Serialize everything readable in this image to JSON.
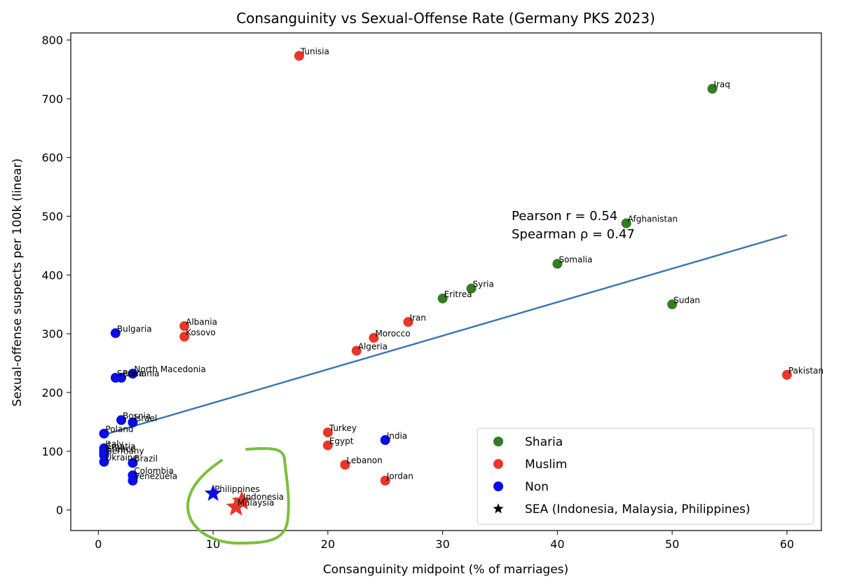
{
  "chart_data": {
    "type": "scatter",
    "title": "Consanguinity vs Sexual-Offense Rate (Germany PKS 2023)",
    "xlabel": "Consanguinity midpoint (% of marriages)",
    "ylabel": "Sexual-offense suspects per 100k (linear)",
    "xlim": [
      -2.4,
      63.0
    ],
    "ylim": [
      -35,
      812
    ],
    "xticks": [
      0,
      10,
      20,
      30,
      40,
      50,
      60
    ],
    "yticks": [
      0,
      100,
      200,
      300,
      400,
      500,
      600,
      700,
      800
    ],
    "colors": {
      "Sharia": "#347c25",
      "Muslim": "#e8372a",
      "Non": "#0a0de6",
      "trend": "#3a74b0",
      "annotation": "#7cbf3c"
    },
    "points": [
      {
        "label": "Tunisia",
        "group": "Muslim",
        "x": 17.5,
        "y": 773
      },
      {
        "label": "Iraq",
        "group": "Sharia",
        "x": 53.5,
        "y": 717
      },
      {
        "label": "Afghanistan",
        "group": "Sharia",
        "x": 46.0,
        "y": 488
      },
      {
        "label": "Somalia",
        "group": "Sharia",
        "x": 40.0,
        "y": 419
      },
      {
        "label": "Syria",
        "group": "Sharia",
        "x": 32.5,
        "y": 377
      },
      {
        "label": "Eritrea",
        "group": "Sharia",
        "x": 30.0,
        "y": 360
      },
      {
        "label": "Sudan",
        "group": "Sharia",
        "x": 50.0,
        "y": 350
      },
      {
        "label": "Iran",
        "group": "Muslim",
        "x": 27.0,
        "y": 320
      },
      {
        "label": "Morocco",
        "group": "Muslim",
        "x": 24.0,
        "y": 293
      },
      {
        "label": "Algeria",
        "group": "Muslim",
        "x": 22.5,
        "y": 271
      },
      {
        "label": "Albania",
        "group": "Muslim",
        "x": 7.5,
        "y": 313
      },
      {
        "label": "Kosovo",
        "group": "Muslim",
        "x": 7.5,
        "y": 295
      },
      {
        "label": "Pakistan",
        "group": "Muslim",
        "x": 60.0,
        "y": 230
      },
      {
        "label": "Turkey",
        "group": "Muslim",
        "x": 20.0,
        "y": 132
      },
      {
        "label": "Egypt",
        "group": "Muslim",
        "x": 20.0,
        "y": 110
      },
      {
        "label": "Lebanon",
        "group": "Muslim",
        "x": 21.5,
        "y": 77
      },
      {
        "label": "Jordan",
        "group": "Muslim",
        "x": 25.0,
        "y": 50
      },
      {
        "label": "India",
        "group": "Non",
        "x": 25.0,
        "y": 119
      },
      {
        "label": "Bulgaria",
        "group": "Non",
        "x": 1.5,
        "y": 301
      },
      {
        "label": "North Macedonia",
        "group": "Non",
        "x": 3.0,
        "y": 232
      },
      {
        "label": "Serbia",
        "group": "Non",
        "x": 1.5,
        "y": 225
      },
      {
        "label": "Romania",
        "group": "Non",
        "x": 2.0,
        "y": 225
      },
      {
        "label": "Bosnia",
        "group": "Non",
        "x": 2.0,
        "y": 153
      },
      {
        "label": "Israel",
        "group": "Non",
        "x": 3.0,
        "y": 149
      },
      {
        "label": "Poland",
        "group": "Non",
        "x": 0.5,
        "y": 130
      },
      {
        "label": "Italy",
        "group": "Non",
        "x": 0.5,
        "y": 105
      },
      {
        "label": "Croatia",
        "group": "Non",
        "x": 0.5,
        "y": 101
      },
      {
        "label": "Greece",
        "group": "Non",
        "x": 0.5,
        "y": 97
      },
      {
        "label": "Germany",
        "group": "Non",
        "x": 0.5,
        "y": 93
      },
      {
        "label": "Ukraine",
        "group": "Non",
        "x": 0.5,
        "y": 82
      },
      {
        "label": "Brazil",
        "group": "Non",
        "x": 3.0,
        "y": 80
      },
      {
        "label": "Colombia",
        "group": "Non",
        "x": 3.0,
        "y": 59
      },
      {
        "label": "Venezuela",
        "group": "Non",
        "x": 3.0,
        "y": 50
      },
      {
        "label": "Philippines",
        "group": "Non",
        "x": 10.0,
        "y": 28,
        "sea": true
      },
      {
        "label": "Indonesia",
        "group": "Muslim",
        "x": 12.5,
        "y": 15,
        "sea": true
      },
      {
        "label": "Malaysia",
        "group": "Muslim",
        "x": 12.0,
        "y": 5,
        "sea": true
      }
    ],
    "trendline": {
      "x": [
        0.5,
        60.0
      ],
      "y": [
        128,
        468
      ]
    },
    "stats": {
      "pearson": "Pearson r = 0.54",
      "spearman": "Spearman ρ = 0.47"
    },
    "legend": {
      "position": "lower-right",
      "items": [
        {
          "label": "Sharia",
          "marker": "circle",
          "group": "Sharia"
        },
        {
          "label": "Muslim",
          "marker": "circle",
          "group": "Muslim"
        },
        {
          "label": "Non",
          "marker": "circle",
          "group": "Non"
        },
        {
          "label": "SEA (Indonesia, Malaysia, Philippines)",
          "marker": "star",
          "group": "black"
        }
      ]
    }
  }
}
